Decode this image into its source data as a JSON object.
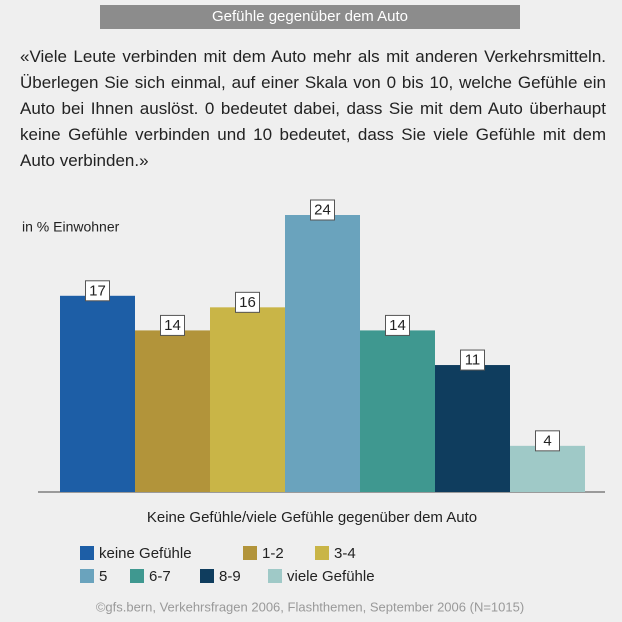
{
  "chart_data": {
    "type": "bar",
    "title": "Gefühle gegenüber dem Auto",
    "question": "«Viele Leute verbinden mit dem Auto mehr als mit anderen Verkehrsmitteln. Überlegen Sie sich einmal, auf einer Skala von 0 bis 10, welche Gefühle ein Auto bei Ihnen auslöst. 0 bedeutet dabei, dass Sie mit dem Auto überhaupt keine Gefühle verbinden und 10 bedeutet, dass Sie viele Gefühle mit dem Auto verbinden.»",
    "y_label": "in % Einwohner",
    "x_label": "Keine Gefühle/viele Gefühle gegenüber dem Auto",
    "source": "©gfs.bern, Verkehrsfragen 2006, Flashthemen, September 2006 (N=1015)",
    "categories": [
      "keine Gefühle",
      "1-2",
      "3-4",
      "5",
      "6-7",
      "8-9",
      "viele Gefühle"
    ],
    "values": [
      17,
      14,
      16,
      24,
      14,
      11,
      4
    ],
    "colors": [
      "#1d5ea6",
      "#b2943a",
      "#c9b547",
      "#6aa3bd",
      "#3f9890",
      "#0f3d5e",
      "#9fc9c7"
    ],
    "ylim": [
      0,
      24
    ]
  }
}
